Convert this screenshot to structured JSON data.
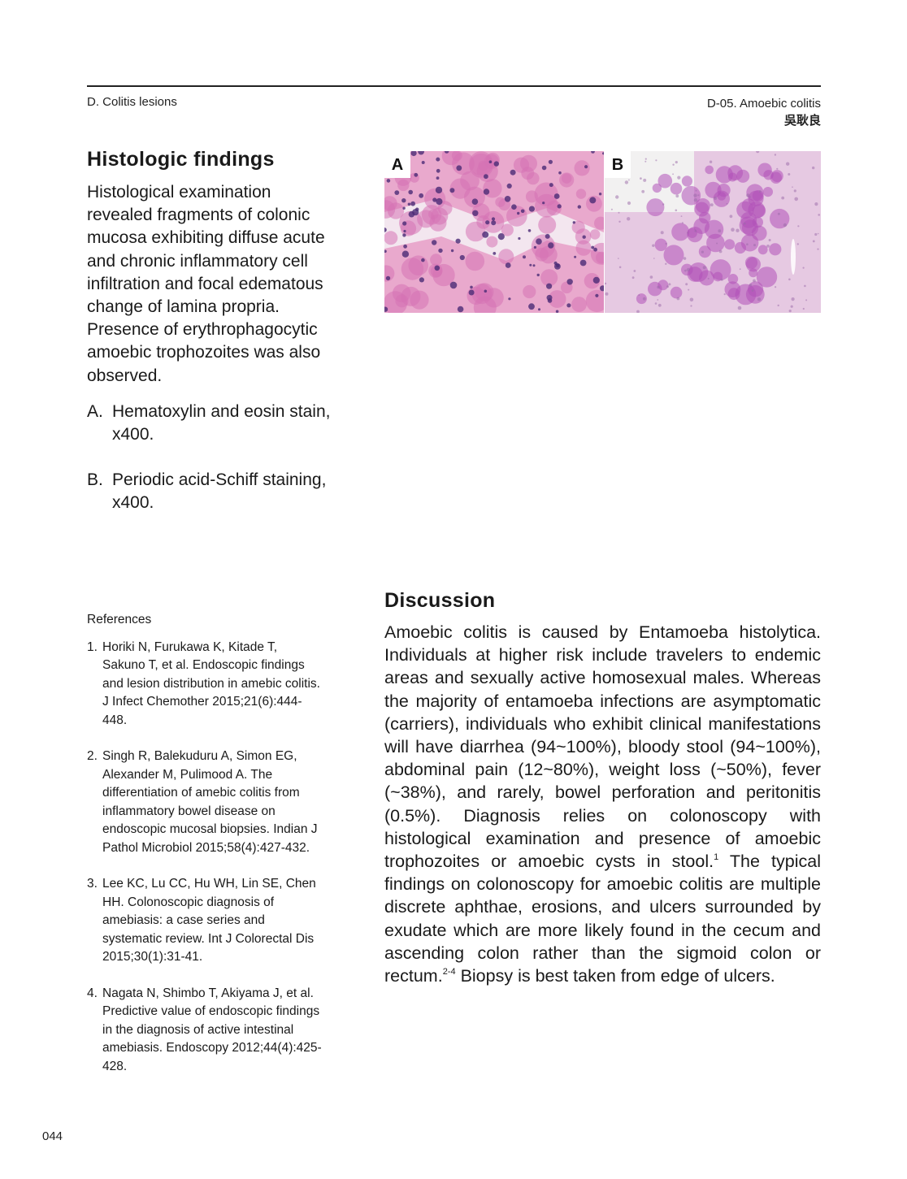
{
  "header": {
    "section": "D. Colitis lesions",
    "chapter": "D-05. Amoebic colitis",
    "author": "吳耿良"
  },
  "histology": {
    "title": "Histologic findings",
    "text": "Histological examination revealed fragments of colonic mucosa exhibiting diffuse acute and chronic inflammatory cell infiltration and focal edematous change of lamina propria. Presence of erythrophagocytic amoebic trophozoites was also observed.",
    "captions": [
      {
        "letter": "A.",
        "text": "Hematoxylin and eosin stain, x400."
      },
      {
        "letter": "B.",
        "text": "Periodic acid-Schiff staining, x400."
      }
    ]
  },
  "figures": {
    "a_label": "A",
    "b_label": "B",
    "colors": {
      "he_background": "#e9a9cd",
      "he_nuclei": "#4a2a76",
      "pas_background": "#e6c9e2",
      "pas_trophozoites": "#b050b8"
    }
  },
  "references": {
    "title": "References",
    "items": [
      {
        "num": "1.",
        "text": "Horiki N, Furukawa K, Kitade T, Sakuno T, et al. Endoscopic findings and lesion distribution in amebic colitis. J Infect Chemother 2015;21(6):444-448."
      },
      {
        "num": "2.",
        "text": "Singh R, Balekuduru A, Simon EG, Alexander M, Pulimood A. The differentiation of amebic colitis from inflammatory bowel disease on endoscopic mucosal biopsies. Indian J Pathol Microbiol 2015;58(4):427-432."
      },
      {
        "num": "3.",
        "text": "Lee KC, Lu CC, Hu WH, Lin SE, Chen HH. Colonoscopic diagnosis of amebiasis: a case series and systematic review. Int J Colorectal Dis 2015;30(1):31-41."
      },
      {
        "num": "4.",
        "text": "Nagata N, Shimbo T, Akiyama J, et al. Predictive value of endoscopic findings in the diagnosis of active intestinal amebiasis. Endoscopy 2012;44(4):425-428."
      }
    ]
  },
  "discussion": {
    "title": "Discussion",
    "text_1": "Amoebic colitis is caused by Entamoeba histolytica. Individuals at higher risk include travelers to endemic areas and sexually active homosexual males. Whereas the majority of entamoeba infections are asymptomatic (carriers), individuals who exhibit clinical manifestations will have diarrhea (94~100%), bloody stool (94~100%), abdominal pain (12~80%), weight loss (~50%), fever (~38%), and rarely, bowel perforation and peritonitis (0.5%). Diagnosis relies on colonoscopy with histological examination and presence of amoebic trophozoites or amoebic cysts in stool.",
    "sup_1": "1",
    "text_2": " The typical findings on colonoscopy for amoebic colitis are multiple discrete aphthae, erosions, and ulcers surrounded by exudate which are more likely found in the cecum and ascending colon rather than the sigmoid colon or rectum.",
    "sup_2": "2-4",
    "text_3": " Biopsy is best taken from edge of ulcers."
  },
  "page_number": "044"
}
